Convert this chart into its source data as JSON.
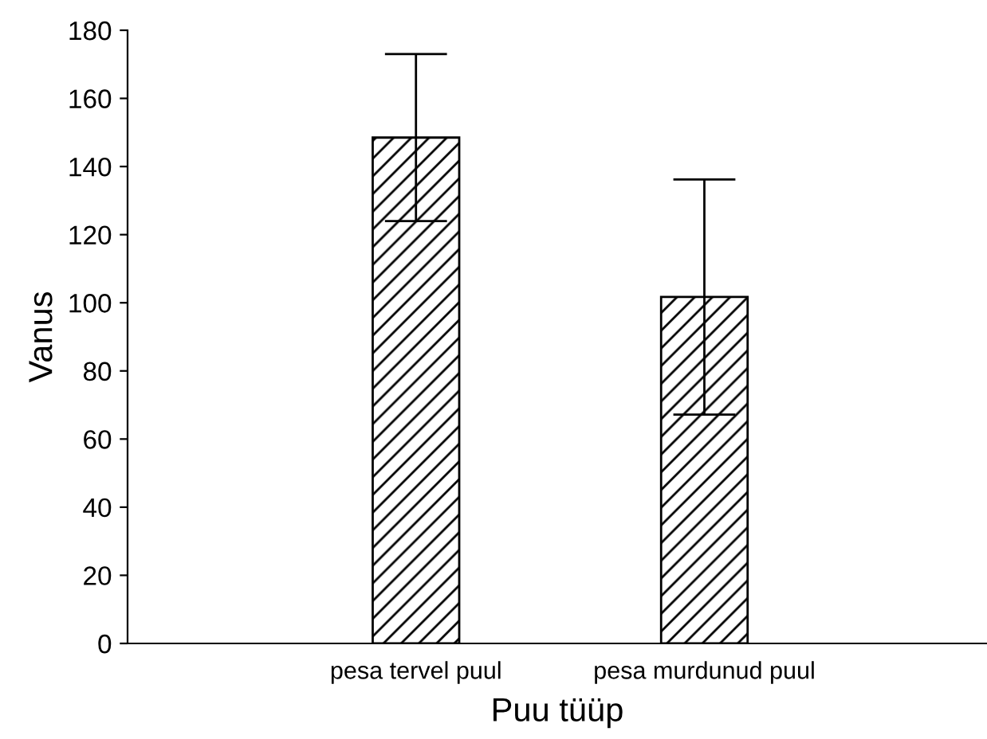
{
  "chart_data": {
    "type": "bar",
    "xlabel": "Puu tüüp",
    "ylabel": "Vanus",
    "categories": [
      "pesa tervel puul",
      "pesa murdunud puul"
    ],
    "values": [
      148.5,
      101.7
    ],
    "errors": [
      24.5,
      34.5
    ],
    "color": "#000000",
    "ylim": [
      0,
      180
    ],
    "yticks": [
      0,
      20,
      40,
      60,
      80,
      100,
      120,
      140,
      160,
      180
    ],
    "grid": false
  }
}
